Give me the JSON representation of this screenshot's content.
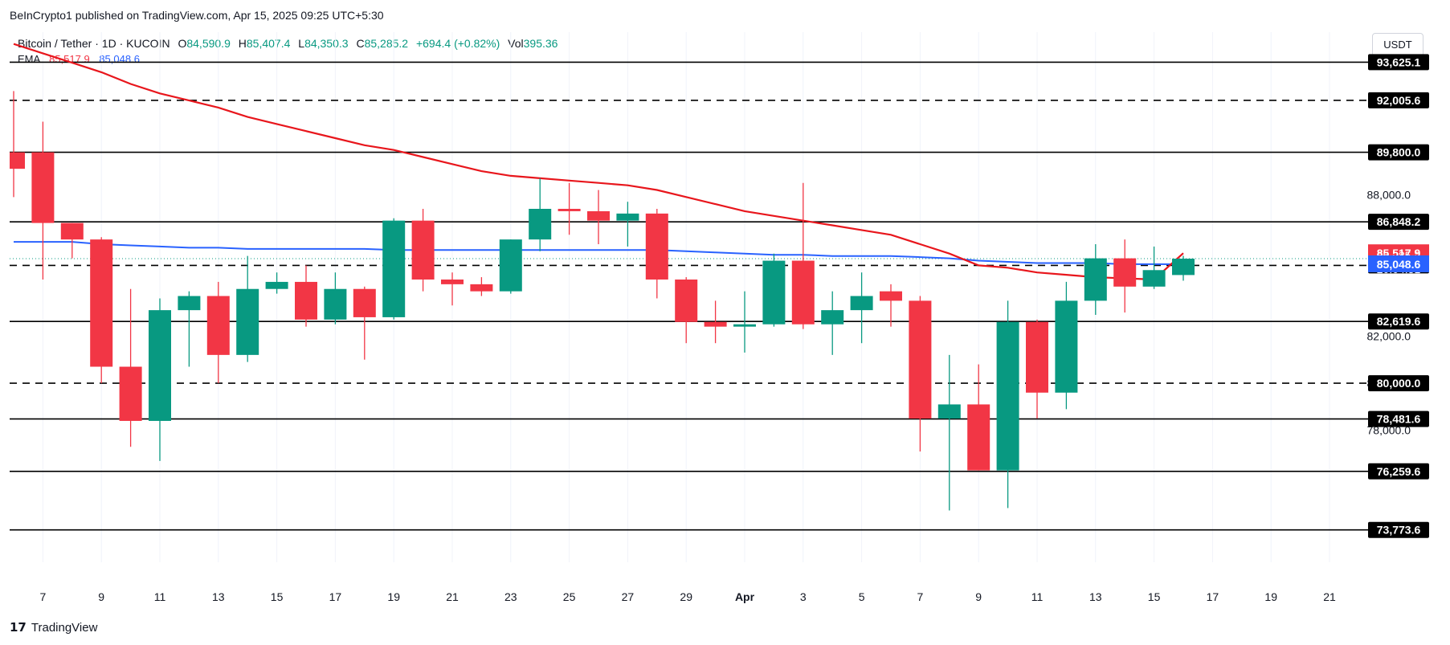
{
  "header": {
    "publisher": "BeInCrypto1 published on TradingView.com, Apr 15, 2025 09:25 UTC+5:30",
    "symbol": "Bitcoin / Tether · 1D · KUCOIN",
    "o_label": "O",
    "o_value": "84,590.9",
    "h_label": "H",
    "h_value": "85,407.4",
    "l_label": "L",
    "l_value": "84,350.3",
    "c_label": "C",
    "c_value": "85,285.2",
    "change": "+694.4 (+0.82%)",
    "vol_label": "Vol",
    "vol_value": "395.36",
    "ema_label": "EMA",
    "ema_red_value": "85,517.9",
    "ema_blue_value": "85,048.6",
    "currency_button": "USDT",
    "logo_text": "TradingView"
  },
  "colors": {
    "up": "#089981",
    "down": "#f23645",
    "ema_red": "#e8161c",
    "ema_blue": "#2962ff",
    "level_line": "#000000"
  },
  "chart_data": {
    "type": "candlestick",
    "ylim": [
      72400,
      94900
    ],
    "yticks": [
      "88,000.0",
      "82,000.0",
      "80,000.0",
      "78,000.0"
    ],
    "xtick_labels": [
      "7",
      "9",
      "11",
      "13",
      "15",
      "17",
      "19",
      "21",
      "23",
      "25",
      "27",
      "29",
      "Apr",
      "3",
      "5",
      "7",
      "9",
      "11",
      "13",
      "15",
      "17",
      "19",
      "21"
    ],
    "candles": [
      {
        "date": "Mar 6",
        "o": 89800,
        "h": 92400,
        "l": 87900,
        "c": 89100
      },
      {
        "date": "Mar 7",
        "o": 89800,
        "h": 91100,
        "l": 84400,
        "c": 86800
      },
      {
        "date": "Mar 8",
        "o": 86800,
        "h": 86800,
        "l": 85300,
        "c": 86100
      },
      {
        "date": "Mar 9",
        "o": 86100,
        "h": 86200,
        "l": 80000,
        "c": 80700
      },
      {
        "date": "Mar 10",
        "o": 80700,
        "h": 84000,
        "l": 77300,
        "c": 78400
      },
      {
        "date": "Mar 11",
        "o": 78400,
        "h": 83600,
        "l": 76700,
        "c": 83100
      },
      {
        "date": "Mar 12",
        "o": 83100,
        "h": 83900,
        "l": 80700,
        "c": 83700
      },
      {
        "date": "Mar 13",
        "o": 83700,
        "h": 84300,
        "l": 80000,
        "c": 81200
      },
      {
        "date": "Mar 14",
        "o": 81200,
        "h": 85400,
        "l": 80900,
        "c": 84000
      },
      {
        "date": "Mar 15",
        "o": 84000,
        "h": 84700,
        "l": 83800,
        "c": 84300
      },
      {
        "date": "Mar 16",
        "o": 84300,
        "h": 85000,
        "l": 82400,
        "c": 82700
      },
      {
        "date": "Mar 17",
        "o": 82700,
        "h": 84700,
        "l": 82500,
        "c": 84000
      },
      {
        "date": "Mar 18",
        "o": 84000,
        "h": 84100,
        "l": 81000,
        "c": 82800
      },
      {
        "date": "Mar 19",
        "o": 82800,
        "h": 87000,
        "l": 82700,
        "c": 86900
      },
      {
        "date": "Mar 20",
        "o": 86900,
        "h": 87400,
        "l": 83900,
        "c": 84400
      },
      {
        "date": "Mar 21",
        "o": 84400,
        "h": 84700,
        "l": 83300,
        "c": 84200
      },
      {
        "date": "Mar 22",
        "o": 84200,
        "h": 84500,
        "l": 83700,
        "c": 83900
      },
      {
        "date": "Mar 23",
        "o": 83900,
        "h": 86100,
        "l": 83800,
        "c": 86100
      },
      {
        "date": "Mar 24",
        "o": 86100,
        "h": 88700,
        "l": 85600,
        "c": 87400
      },
      {
        "date": "Mar 25",
        "o": 87400,
        "h": 88500,
        "l": 86300,
        "c": 87300
      },
      {
        "date": "Mar 26",
        "o": 87300,
        "h": 88200,
        "l": 85900,
        "c": 86900
      },
      {
        "date": "Mar 27",
        "o": 86900,
        "h": 87700,
        "l": 85800,
        "c": 87200
      },
      {
        "date": "Mar 28",
        "o": 87200,
        "h": 87400,
        "l": 83600,
        "c": 84400
      },
      {
        "date": "Mar 29",
        "o": 84400,
        "h": 84500,
        "l": 81700,
        "c": 82600
      },
      {
        "date": "Mar 30",
        "o": 82600,
        "h": 83500,
        "l": 81700,
        "c": 82400
      },
      {
        "date": "Mar 31",
        "o": 82400,
        "h": 83900,
        "l": 81300,
        "c": 82500
      },
      {
        "date": "Apr 1",
        "o": 82500,
        "h": 85500,
        "l": 82400,
        "c": 85200
      },
      {
        "date": "Apr 2",
        "o": 85200,
        "h": 88500,
        "l": 82300,
        "c": 82500
      },
      {
        "date": "Apr 3",
        "o": 82500,
        "h": 83900,
        "l": 81200,
        "c": 83100
      },
      {
        "date": "Apr 4",
        "o": 83100,
        "h": 84700,
        "l": 81700,
        "c": 83700
      },
      {
        "date": "Apr 5",
        "o": 83900,
        "h": 84200,
        "l": 82400,
        "c": 83500
      },
      {
        "date": "Apr 6",
        "o": 83500,
        "h": 83700,
        "l": 77100,
        "c": 78500
      },
      {
        "date": "Apr 7",
        "o": 78500,
        "h": 81200,
        "l": 74600,
        "c": 79100
      },
      {
        "date": "Apr 8",
        "o": 79100,
        "h": 80800,
        "l": 76300,
        "c": 76300
      },
      {
        "date": "Apr 9",
        "o": 76300,
        "h": 83500,
        "l": 74700,
        "c": 82600
      },
      {
        "date": "Apr 10",
        "o": 82600,
        "h": 82700,
        "l": 78500,
        "c": 79600
      },
      {
        "date": "Apr 11",
        "o": 79600,
        "h": 84300,
        "l": 78900,
        "c": 83500
      },
      {
        "date": "Apr 12",
        "o": 83500,
        "h": 85900,
        "l": 82900,
        "c": 85300
      },
      {
        "date": "Apr 13",
        "o": 85300,
        "h": 86100,
        "l": 83000,
        "c": 84100
      },
      {
        "date": "Apr 14",
        "o": 84100,
        "h": 85800,
        "l": 84000,
        "c": 84800
      },
      {
        "date": "Apr 15",
        "o": 84590.9,
        "h": 85407.4,
        "l": 84350.3,
        "c": 85285.2
      }
    ],
    "ema_red": [
      94400,
      94000,
      93600,
      93200,
      92700,
      92300,
      92000,
      91700,
      91300,
      91000,
      90700,
      90400,
      90100,
      89900,
      89600,
      89300,
      89000,
      88800,
      88700,
      88600,
      88500,
      88400,
      88200,
      87900,
      87600,
      87300,
      87100,
      86900,
      86700,
      86500,
      86300,
      85900,
      85500,
      85000,
      84900,
      84700,
      84600,
      84500,
      84450,
      84400,
      85517.9
    ],
    "ema_blue": [
      86000,
      86000,
      86000,
      85900,
      85850,
      85800,
      85750,
      85750,
      85700,
      85700,
      85700,
      85700,
      85700,
      85650,
      85650,
      85650,
      85650,
      85650,
      85650,
      85650,
      85650,
      85650,
      85650,
      85600,
      85550,
      85500,
      85450,
      85450,
      85400,
      85400,
      85400,
      85350,
      85300,
      85200,
      85150,
      85100,
      85100,
      85100,
      85050,
      85050,
      85048.6
    ],
    "levels": [
      {
        "value": 93625.1,
        "label": "93,625.1",
        "style": "solid"
      },
      {
        "value": 92005.6,
        "label": "92,005.6",
        "style": "dashed"
      },
      {
        "value": 89800.0,
        "label": "89,800.0",
        "style": "solid"
      },
      {
        "value": 86848.2,
        "label": "86,848.2",
        "style": "solid"
      },
      {
        "value": 85000.0,
        "label": "85,000.0",
        "style": "dashed"
      },
      {
        "value": 82619.6,
        "label": "82,619.6",
        "style": "solid"
      },
      {
        "value": 80000.0,
        "label": "80,000.0",
        "style": "dashed"
      },
      {
        "value": 78481.6,
        "label": "78,481.6",
        "style": "solid"
      },
      {
        "value": 76259.6,
        "label": "76,259.6",
        "style": "solid"
      },
      {
        "value": 73773.6,
        "label": "73,773.6",
        "style": "solid"
      }
    ],
    "price_tags": [
      {
        "label": "85,517.9",
        "value": 85517.9,
        "color": "#f23645"
      },
      {
        "label": "85,285.2",
        "value": 85285.2,
        "color": "#089981",
        "countdown": "20:04:31"
      },
      {
        "label": "85,048.6",
        "value": 85048.6,
        "color": "#2962ff"
      }
    ]
  }
}
